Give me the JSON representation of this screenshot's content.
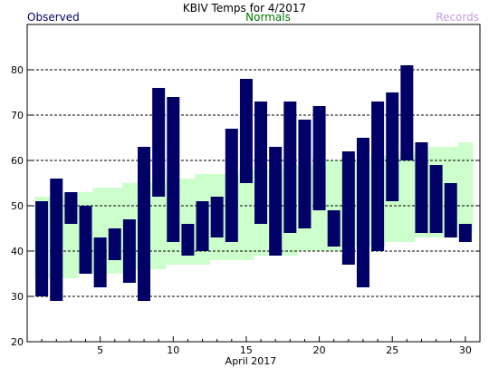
{
  "chart_data": {
    "type": "bar",
    "title": "KBIV Temps for 4/2017",
    "xlabel": "April 2017",
    "ylabel": "",
    "legend": {
      "observed": "Observed",
      "normals": "Normals",
      "records": "Records"
    },
    "colors": {
      "observed": "#000066",
      "normals_band": "#ccffcc",
      "normals_text": "#007700",
      "records_text": "#cc99dd",
      "grid": "#000000"
    },
    "grid": true,
    "xlim": [
      0,
      31
    ],
    "ylim": [
      20,
      90
    ],
    "x_ticks": [
      5,
      10,
      15,
      20,
      25,
      30
    ],
    "y_ticks": [
      20,
      30,
      40,
      50,
      60,
      70,
      80
    ],
    "days": [
      1,
      2,
      3,
      4,
      5,
      6,
      7,
      8,
      9,
      10,
      11,
      12,
      13,
      14,
      15,
      16,
      17,
      18,
      19,
      20,
      21,
      22,
      23,
      24,
      25,
      26,
      27,
      28,
      29,
      30
    ],
    "observed_high": [
      51,
      56,
      53,
      50,
      43,
      45,
      47,
      63,
      76,
      74,
      46,
      51,
      52,
      67,
      78,
      73,
      63,
      73,
      69,
      72,
      49,
      62,
      65,
      73,
      75,
      81,
      64,
      59,
      55,
      46
    ],
    "observed_low": [
      30,
      29,
      46,
      35,
      32,
      38,
      33,
      29,
      52,
      42,
      39,
      40,
      43,
      42,
      55,
      46,
      39,
      44,
      45,
      49,
      41,
      37,
      32,
      40,
      51,
      60,
      44,
      44,
      43,
      42
    ],
    "normal_high": [
      52,
      52,
      53,
      53,
      54,
      54,
      55,
      55,
      55,
      56,
      56,
      57,
      57,
      57,
      58,
      58,
      58,
      59,
      59,
      59,
      60,
      60,
      60,
      61,
      61,
      62,
      62,
      63,
      63,
      64
    ],
    "normal_low": [
      34,
      34,
      34,
      35,
      35,
      35,
      36,
      36,
      36,
      37,
      37,
      37,
      38,
      38,
      38,
      39,
      39,
      39,
      40,
      40,
      40,
      41,
      41,
      41,
      42,
      42,
      43,
      43,
      43,
      44
    ]
  }
}
